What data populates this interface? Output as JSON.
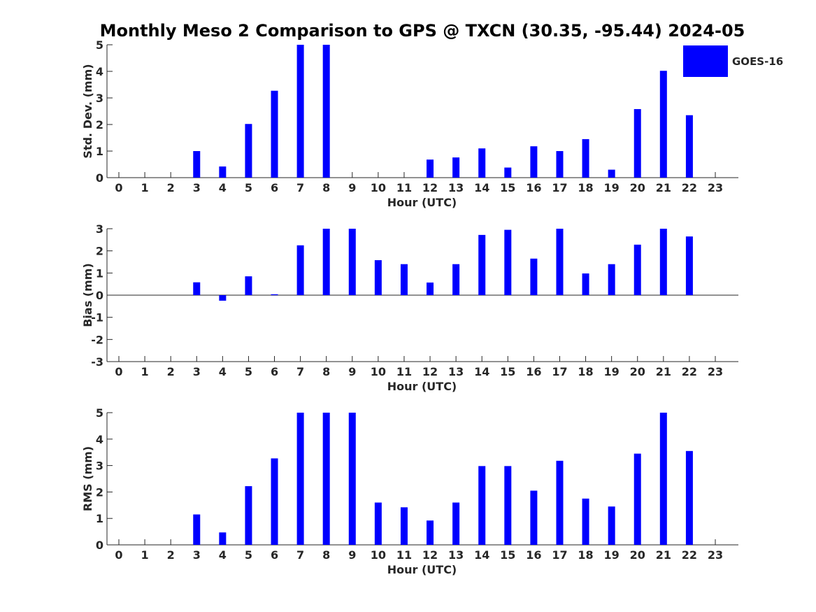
{
  "title": "Monthly Meso 2 Comparison to GPS @ TXCN (30.35, -95.44) 2024-05",
  "legend": {
    "label": "GOES-16",
    "color": "#0000ff"
  },
  "chart_data": [
    {
      "type": "bar",
      "id": "std",
      "ylabel": "Std. Dev. (mm)",
      "xlabel": "Hour (UTC)",
      "ylim": [
        0,
        5
      ],
      "yticks": [
        0,
        1,
        2,
        3,
        4,
        5
      ],
      "categories": [
        "0",
        "1",
        "2",
        "3",
        "4",
        "5",
        "6",
        "7",
        "8",
        "9",
        "10",
        "11",
        "12",
        "13",
        "14",
        "15",
        "16",
        "17",
        "18",
        "19",
        "20",
        "21",
        "22",
        "23"
      ],
      "series": [
        {
          "name": "GOES-16",
          "values": [
            null,
            null,
            null,
            1.0,
            0.42,
            2.02,
            3.27,
            5.0,
            5.0,
            null,
            null,
            null,
            0.68,
            0.76,
            1.1,
            0.38,
            1.18,
            1.0,
            1.45,
            0.3,
            2.58,
            4.02,
            2.35,
            null
          ]
        }
      ]
    },
    {
      "type": "bar",
      "id": "bias",
      "ylabel": "Bias (mm)",
      "xlabel": "Hour (UTC)",
      "ylim": [
        -3,
        3
      ],
      "yticks": [
        -3,
        -2,
        -1,
        0,
        1,
        2,
        3
      ],
      "categories": [
        "0",
        "1",
        "2",
        "3",
        "4",
        "5",
        "6",
        "7",
        "8",
        "9",
        "10",
        "11",
        "12",
        "13",
        "14",
        "15",
        "16",
        "17",
        "18",
        "19",
        "20",
        "21",
        "22",
        "23"
      ],
      "series": [
        {
          "name": "GOES-16",
          "values": [
            null,
            null,
            null,
            0.58,
            -0.25,
            0.85,
            0.04,
            2.25,
            3.0,
            3.0,
            1.58,
            1.4,
            0.57,
            1.4,
            2.72,
            2.95,
            1.65,
            3.0,
            0.98,
            1.4,
            2.28,
            3.0,
            2.65,
            null
          ]
        }
      ]
    },
    {
      "type": "bar",
      "id": "rms",
      "ylabel": "RMS (mm)",
      "xlabel": "Hour (UTC)",
      "ylim": [
        0,
        5
      ],
      "yticks": [
        0,
        1,
        2,
        3,
        4,
        5
      ],
      "categories": [
        "0",
        "1",
        "2",
        "3",
        "4",
        "5",
        "6",
        "7",
        "8",
        "9",
        "10",
        "11",
        "12",
        "13",
        "14",
        "15",
        "16",
        "17",
        "18",
        "19",
        "20",
        "21",
        "22",
        "23"
      ],
      "series": [
        {
          "name": "GOES-16",
          "values": [
            null,
            null,
            null,
            1.15,
            0.47,
            2.22,
            3.27,
            5.0,
            5.0,
            5.0,
            1.6,
            1.42,
            0.92,
            1.6,
            2.98,
            2.98,
            2.05,
            3.18,
            1.75,
            1.45,
            3.45,
            5.0,
            3.55,
            null
          ]
        }
      ]
    }
  ]
}
